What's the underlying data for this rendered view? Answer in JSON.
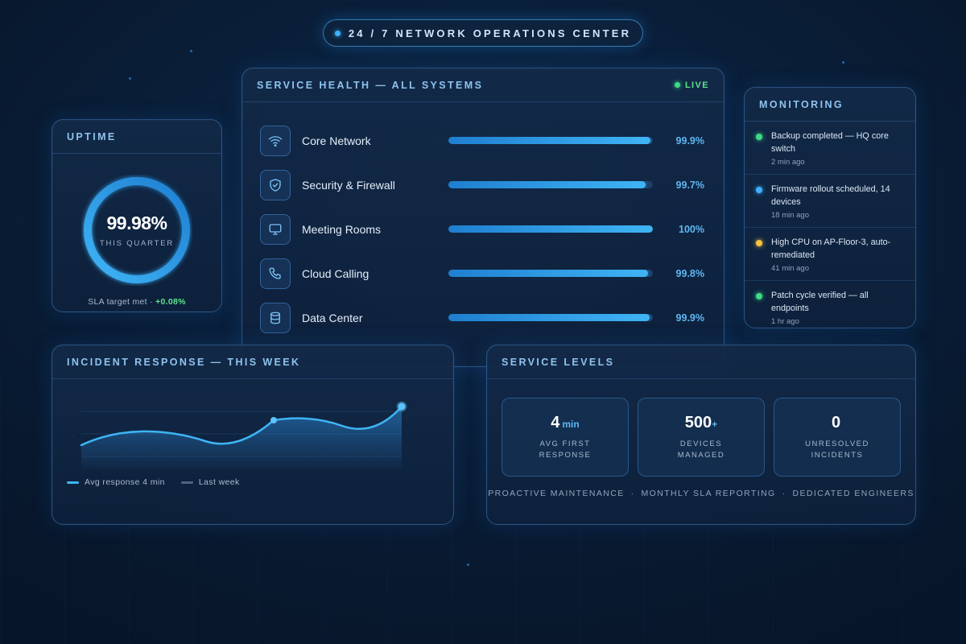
{
  "top_banner": {
    "label": "24 / 7  NETWORK OPERATIONS CENTER"
  },
  "uptime": {
    "title": "UPTIME",
    "value": "99.98%",
    "value_fraction": 0.9998,
    "subtitle": "THIS QUARTER",
    "sla_text": "SLA target met · ",
    "sla_delta": "+0.08%"
  },
  "health": {
    "title": "SERVICE HEALTH — ALL SYSTEMS",
    "live_label": "LIVE",
    "services": [
      {
        "name": "Core Network",
        "value": "99.9%",
        "level": 0.99,
        "icon": "wifi-icon"
      },
      {
        "name": "Security & Firewall",
        "value": "99.7%",
        "level": 0.965,
        "icon": "shield-icon"
      },
      {
        "name": "Meeting Rooms",
        "value": "100%",
        "level": 1.0,
        "icon": "monitor-icon"
      },
      {
        "name": "Cloud Calling",
        "value": "99.8%",
        "level": 0.975,
        "icon": "phone-icon"
      },
      {
        "name": "Data Center",
        "value": "99.9%",
        "level": 0.985,
        "icon": "database-icon"
      }
    ]
  },
  "monitoring": {
    "title": "MONITORING",
    "items": [
      {
        "text": "Backup completed — HQ core switch",
        "time": "2 min ago",
        "status_color": "#3ddc84"
      },
      {
        "text": "Firmware rollout scheduled, 14 devices",
        "time": "18 min ago",
        "status_color": "#3fb0ff"
      },
      {
        "text": "High CPU on AP-Floor-3, auto-remediated",
        "time": "41 min ago",
        "status_color": "#f5c242"
      },
      {
        "text": "Patch cycle verified — all endpoints",
        "time": "1 hr ago",
        "status_color": "#3ddc84"
      }
    ]
  },
  "incident": {
    "title": "INCIDENT RESPONSE — THIS WEEK",
    "legend_current": "Avg response 4 min",
    "legend_previous": "Last week"
  },
  "levels": {
    "title": "SERVICE LEVELS",
    "stats": [
      {
        "value": "4",
        "suffix": "min",
        "label_line1": "AVG FIRST",
        "label_line2": "RESPONSE"
      },
      {
        "value": "500",
        "suffix": "+",
        "label_line1": "DEVICES",
        "label_line2": "MANAGED"
      },
      {
        "value": "0",
        "suffix": "",
        "label_line1": "UNRESOLVED",
        "label_line2": "INCIDENTS"
      }
    ],
    "footer": [
      "PROACTIVE MAINTENANCE",
      "MONTHLY SLA REPORTING",
      "DEDICATED ENGINEERS"
    ],
    "footer_separator": "·"
  },
  "colors": {
    "accent": "#3fb4f5",
    "live_green": "#3ddc84",
    "warning": "#f5c242"
  }
}
